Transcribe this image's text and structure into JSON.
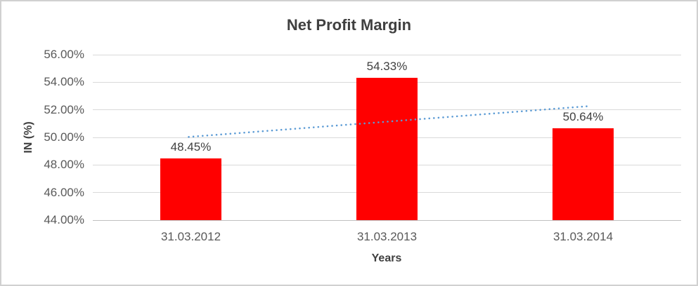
{
  "chart_data": {
    "type": "bar",
    "title": "Net Profit Margin",
    "xlabel": "Years",
    "ylabel": "IN (%)",
    "categories": [
      "31.03.2012",
      "31.03.2013",
      "31.03.2014"
    ],
    "values": [
      48.45,
      54.33,
      50.64
    ],
    "data_labels": [
      "48.45%",
      "54.33%",
      "50.64%"
    ],
    "ylim": [
      44,
      56
    ],
    "ytick_step": 2,
    "ytick_labels": [
      "44.00%",
      "46.00%",
      "48.00%",
      "50.00%",
      "52.00%",
      "54.00%",
      "56.00%"
    ],
    "grid": true,
    "legend": "none",
    "bar_color": "#FF0000",
    "trendline": {
      "type": "linear",
      "line_style": "dotted",
      "color": "#5B9BD5"
    },
    "colors": {
      "grid": "#D9D9D9",
      "axis_line": "#BFBFBF",
      "title_text": "#404040",
      "tick_text": "#595959",
      "data_label_text": "#404040",
      "chart_border": "#D0D0D0",
      "background": "#FFFFFF"
    }
  }
}
